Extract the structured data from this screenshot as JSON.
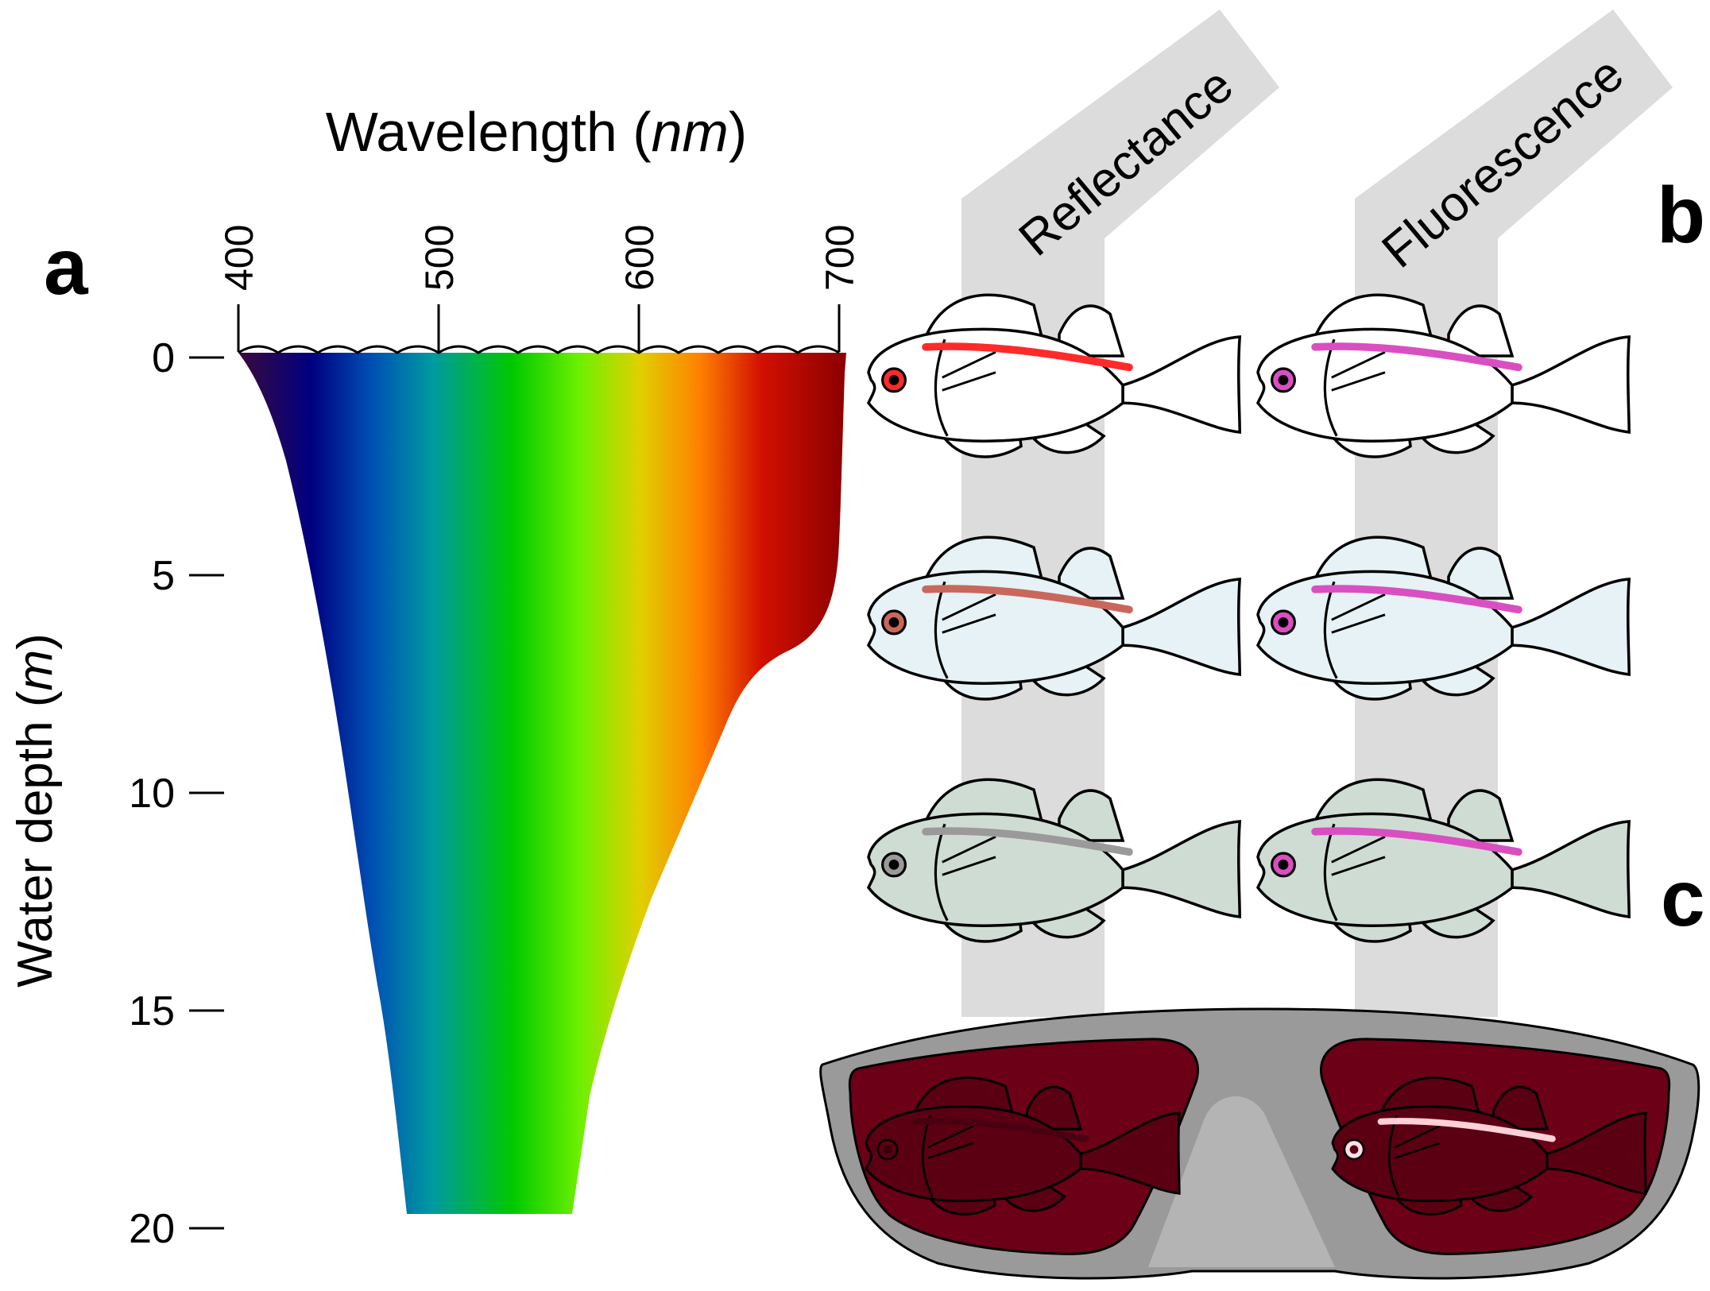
{
  "panels": {
    "a": "a",
    "b": "b",
    "c": "c"
  },
  "axes": {
    "x_title": "Wavelength (",
    "x_unit": "nm",
    "x_close": ")",
    "x_ticks": [
      "400",
      "500",
      "600",
      "700"
    ],
    "y_title": "Water depth (",
    "y_unit": "m",
    "y_close": ")",
    "y_ticks": [
      "0",
      "5",
      "10",
      "15",
      "20"
    ]
  },
  "beams": {
    "reflectance": "Reflectance",
    "fluorescence": "Fluorescence"
  },
  "colors": {
    "spectrum": [
      "#3a0a3d",
      "#000080",
      "#0050b4",
      "#009aa0",
      "#00c800",
      "#6cf000",
      "#e0d000",
      "#ff8000",
      "#d21000",
      "#8b0000"
    ],
    "beam": "#dcdcdc",
    "mask_frame": "#9a9a9a",
    "mask_bridge": "#b4b4b4",
    "lens": "#6b0016",
    "stripe_reflect": [
      "#ff2a2a",
      "#c9675c",
      "#9a9a9a"
    ],
    "stripe_fluor": "#d94fc1",
    "fish_body": [
      "#ffffff",
      "#e6f2f5",
      "#cfdcd4"
    ]
  }
}
